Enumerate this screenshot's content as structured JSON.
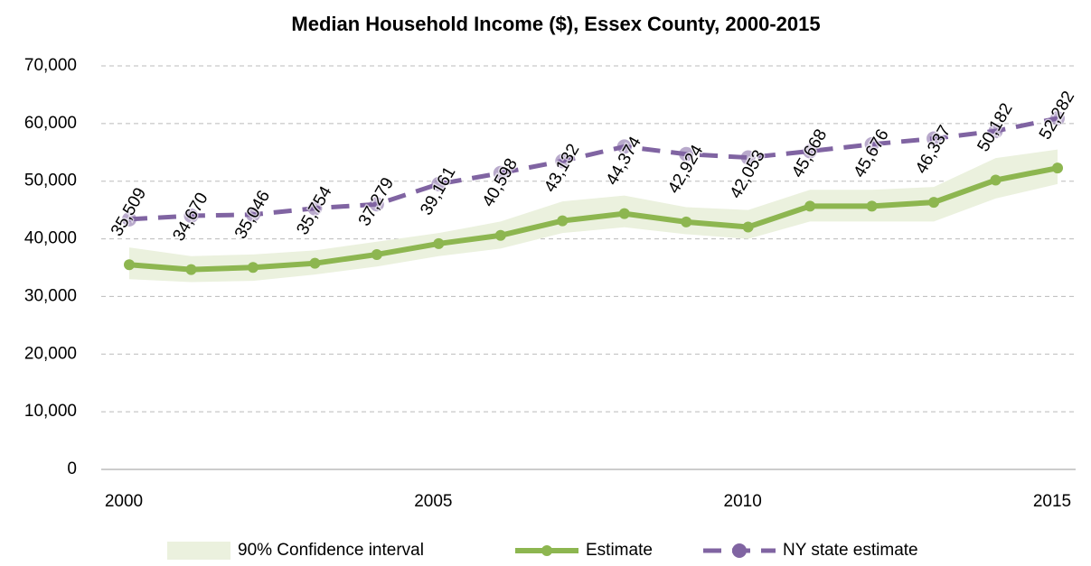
{
  "chart_data": {
    "type": "line",
    "title": "Median Household Income ($), Essex County, 2000-2015",
    "x": [
      2000,
      2001,
      2002,
      2003,
      2004,
      2005,
      2006,
      2007,
      2008,
      2009,
      2010,
      2011,
      2012,
      2013,
      2014,
      2015
    ],
    "xlim": [
      2000,
      2015
    ],
    "xticks": [
      2000,
      2005,
      2010,
      2015
    ],
    "ylim": [
      0,
      70000
    ],
    "yticks": [
      0,
      {
        "value": 10000,
        "label": "10,000"
      },
      {
        "value": 20000,
        "label": "20,000"
      },
      {
        "value": 30000,
        "label": "30,000"
      },
      {
        "value": 40000,
        "label": "40,000"
      },
      {
        "value": 50000,
        "label": "50,000"
      },
      {
        "value": 60000,
        "label": "60,000"
      },
      {
        "value": 70000,
        "label": "70,000"
      }
    ],
    "grid": true,
    "band": {
      "name": "90% Confidence interval",
      "color": "#ebf1de",
      "lower": [
        33000,
        32500,
        32700,
        33800,
        35200,
        37000,
        38300,
        41000,
        42000,
        40800,
        40000,
        43000,
        43000,
        43000,
        47000,
        49500
      ],
      "upper": [
        38500,
        37000,
        37300,
        38000,
        39500,
        41000,
        43000,
        46500,
        47500,
        45500,
        45000,
        48500,
        48500,
        49000,
        54000,
        55500
      ]
    },
    "series": [
      {
        "name": "Estimate",
        "color": "#8db650",
        "style": "solid",
        "values": [
          35509,
          34670,
          35046,
          35754,
          37279,
          39161,
          40598,
          43132,
          44374,
          42924,
          42053,
          45668,
          45676,
          46337,
          50182,
          52282
        ],
        "value_labels": [
          "35,509",
          "34,670",
          "35,046",
          "35,754",
          "37,279",
          "39,161",
          "40,598",
          "43,132",
          "44,374",
          "42,924",
          "42,053",
          "45,668",
          "45,676",
          "46,337",
          "50,182",
          "52,282"
        ]
      },
      {
        "name": "NY state estimate",
        "color": "#8064a2",
        "style": "dashed",
        "values": [
          43400,
          44000,
          44200,
          45300,
          46000,
          49500,
          51400,
          53500,
          56000,
          54700,
          54100,
          55200,
          56400,
          57400,
          58700,
          60900
        ]
      }
    ],
    "legend": "bottom"
  }
}
